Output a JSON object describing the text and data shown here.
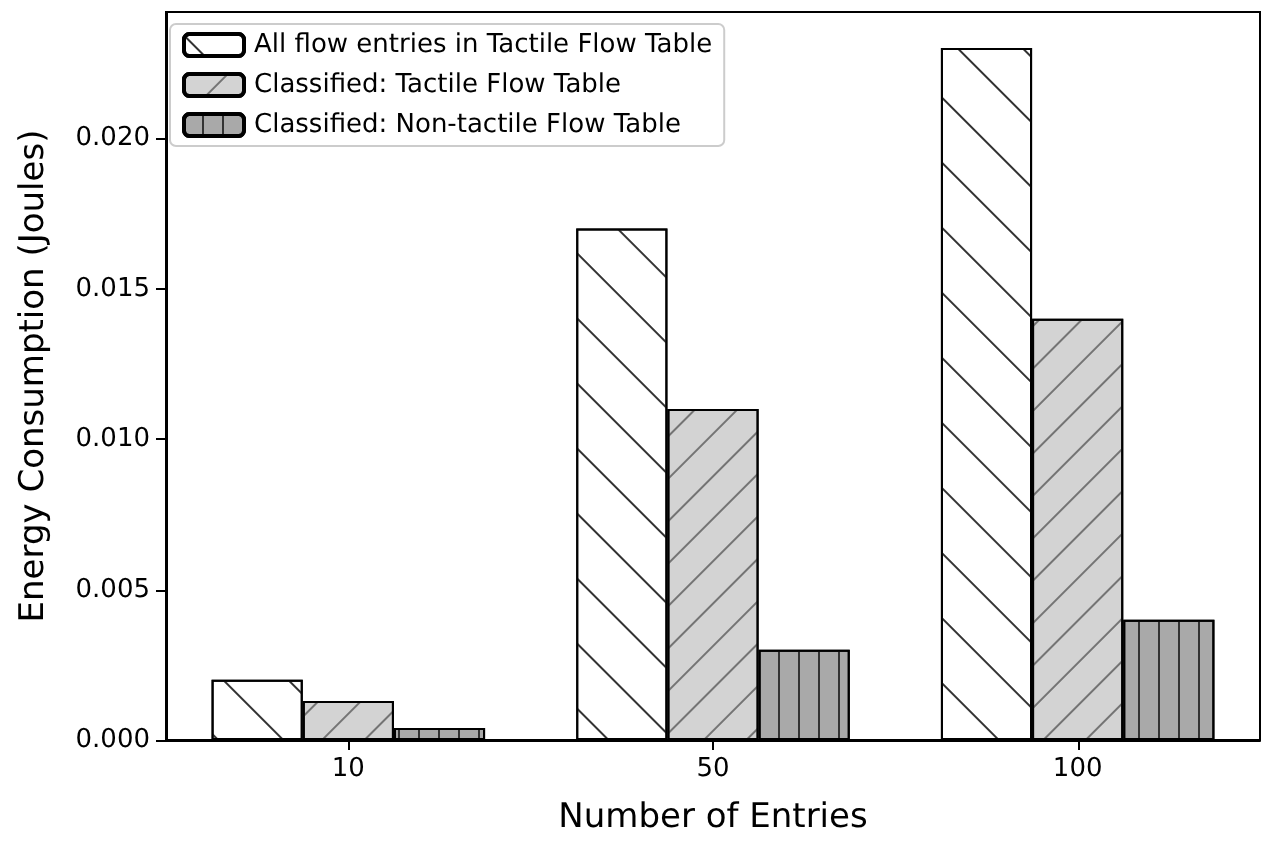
{
  "chart_data": {
    "type": "bar",
    "xlabel": "Number of Entries",
    "ylabel": "Energy Consumption (Joules)",
    "categories": [
      "10",
      "50",
      "100"
    ],
    "series": [
      {
        "name": "All flow entries in Tactile Flow Table",
        "color": "#ffffff",
        "values": [
          0.002,
          0.017,
          0.023
        ]
      },
      {
        "name": "Classified: Tactile Flow Table",
        "color": "#d3d3d3",
        "values": [
          0.0013,
          0.011,
          0.014
        ]
      },
      {
        "name": "Classified: Non-tactile Flow Table",
        "color": "#a9a9a9",
        "values": [
          0.0004,
          0.003,
          0.004
        ]
      }
    ],
    "ylim": [
      0,
      0.0242
    ],
    "yticks": [
      {
        "value": 0,
        "label": "0.000"
      },
      {
        "value": 0.005,
        "label": "0.005"
      },
      {
        "value": 0.01,
        "label": "0.010"
      },
      {
        "value": 0.015,
        "label": "0.015"
      },
      {
        "value": 0.02,
        "label": "0.020"
      }
    ],
    "grid": false,
    "legend": "top left"
  }
}
